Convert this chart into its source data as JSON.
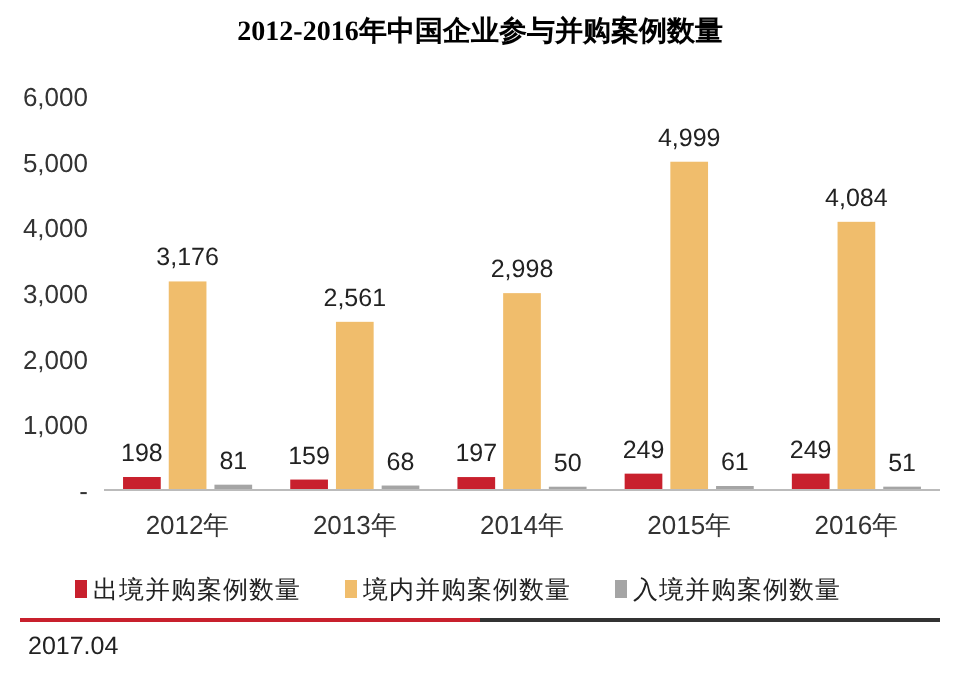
{
  "chart_data": {
    "type": "bar",
    "title": "2012-2016年中国企业参与并购案例数量",
    "categories": [
      "2012年",
      "2013年",
      "2014年",
      "2015年",
      "2016年"
    ],
    "series": [
      {
        "name": "出境并购案例数量",
        "color": "#c8202d",
        "values": [
          198,
          159,
          197,
          249,
          249
        ],
        "value_labels": [
          "198",
          "159",
          "197",
          "249",
          "249"
        ]
      },
      {
        "name": "境内并购案例数量",
        "color": "#f0bd6c",
        "values": [
          3176,
          2561,
          2998,
          4999,
          4084
        ],
        "value_labels": [
          "3,176",
          "2,561",
          "2,998",
          "4,999",
          "4,084"
        ]
      },
      {
        "name": "入境并购案例数量",
        "color": "#a5a5a5",
        "values": [
          81,
          68,
          50,
          61,
          51
        ],
        "value_labels": [
          "81",
          "68",
          "50",
          "61",
          "51"
        ]
      }
    ],
    "ylim": [
      0,
      6000
    ],
    "yticks": [
      {
        "value": 0,
        "label": "-"
      },
      {
        "value": 1000,
        "label": "1,000"
      },
      {
        "value": 2000,
        "label": "2,000"
      },
      {
        "value": 3000,
        "label": "3,000"
      },
      {
        "value": 4000,
        "label": "4,000"
      },
      {
        "value": 5000,
        "label": "5,000"
      },
      {
        "value": 6000,
        "label": "6,000"
      }
    ],
    "grid": false,
    "legend": "bottom",
    "annotations": [
      "2017.04"
    ]
  }
}
